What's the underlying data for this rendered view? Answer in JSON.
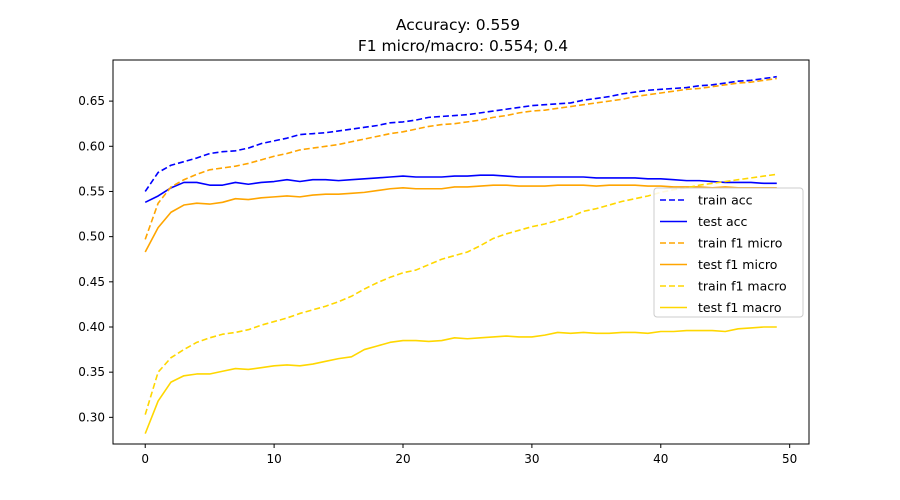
{
  "chart_data": {
    "type": "line",
    "title": "Accuracy: 0.559",
    "subtitle": "F1 micro/macro: 0.554; 0.4",
    "xlim": [
      -2.5,
      51.5
    ],
    "ylim": [
      0.2705,
      0.6955
    ],
    "x_ticks": [
      0,
      10,
      20,
      30,
      40,
      50
    ],
    "y_ticks": [
      0.3,
      0.35,
      0.4,
      0.45,
      0.5,
      0.55,
      0.6,
      0.65
    ],
    "y_tick_labels": [
      "0.30",
      "0.35",
      "0.40",
      "0.45",
      "0.50",
      "0.55",
      "0.60",
      "0.65"
    ],
    "legend_position": "center-right",
    "series": [
      {
        "name": "train acc",
        "color": "#0000ff",
        "dash": true,
        "values": [
          0.55,
          0.571,
          0.579,
          0.583,
          0.587,
          0.592,
          0.594,
          0.595,
          0.598,
          0.603,
          0.606,
          0.609,
          0.613,
          0.614,
          0.615,
          0.617,
          0.619,
          0.621,
          0.623,
          0.626,
          0.627,
          0.629,
          0.632,
          0.633,
          0.634,
          0.635,
          0.637,
          0.639,
          0.641,
          0.643,
          0.645,
          0.646,
          0.647,
          0.648,
          0.651,
          0.653,
          0.655,
          0.658,
          0.66,
          0.662,
          0.663,
          0.664,
          0.665,
          0.667,
          0.668,
          0.67,
          0.672,
          0.673,
          0.675,
          0.677
        ]
      },
      {
        "name": "test acc",
        "color": "#0000ff",
        "dash": false,
        "values": [
          0.538,
          0.545,
          0.554,
          0.56,
          0.56,
          0.557,
          0.557,
          0.56,
          0.558,
          0.56,
          0.561,
          0.563,
          0.561,
          0.563,
          0.563,
          0.562,
          0.563,
          0.564,
          0.565,
          0.566,
          0.567,
          0.566,
          0.566,
          0.566,
          0.567,
          0.567,
          0.568,
          0.568,
          0.567,
          0.566,
          0.566,
          0.566,
          0.566,
          0.566,
          0.566,
          0.565,
          0.565,
          0.565,
          0.565,
          0.564,
          0.564,
          0.563,
          0.562,
          0.562,
          0.561,
          0.56,
          0.56,
          0.56,
          0.559,
          0.559
        ]
      },
      {
        "name": "train f1 micro",
        "color": "#ffa500",
        "dash": true,
        "values": [
          0.497,
          0.537,
          0.555,
          0.563,
          0.569,
          0.574,
          0.576,
          0.578,
          0.581,
          0.585,
          0.589,
          0.592,
          0.596,
          0.598,
          0.6,
          0.602,
          0.605,
          0.608,
          0.611,
          0.614,
          0.616,
          0.619,
          0.622,
          0.624,
          0.625,
          0.627,
          0.629,
          0.632,
          0.634,
          0.637,
          0.639,
          0.64,
          0.642,
          0.644,
          0.646,
          0.648,
          0.65,
          0.652,
          0.655,
          0.657,
          0.659,
          0.661,
          0.663,
          0.664,
          0.666,
          0.668,
          0.67,
          0.671,
          0.673,
          0.675
        ]
      },
      {
        "name": "test f1 micro",
        "color": "#ffa500",
        "dash": false,
        "values": [
          0.483,
          0.51,
          0.527,
          0.535,
          0.537,
          0.536,
          0.538,
          0.542,
          0.541,
          0.543,
          0.544,
          0.545,
          0.544,
          0.546,
          0.547,
          0.547,
          0.548,
          0.549,
          0.551,
          0.553,
          0.554,
          0.553,
          0.553,
          0.553,
          0.555,
          0.555,
          0.556,
          0.557,
          0.557,
          0.556,
          0.556,
          0.556,
          0.557,
          0.557,
          0.557,
          0.556,
          0.557,
          0.557,
          0.557,
          0.556,
          0.556,
          0.555,
          0.555,
          0.555,
          0.554,
          0.555,
          0.554,
          0.554,
          0.554,
          0.554
        ]
      },
      {
        "name": "train f1 macro",
        "color": "#ffd700",
        "dash": true,
        "values": [
          0.303,
          0.35,
          0.366,
          0.375,
          0.383,
          0.388,
          0.392,
          0.394,
          0.397,
          0.402,
          0.406,
          0.41,
          0.415,
          0.419,
          0.423,
          0.428,
          0.434,
          0.442,
          0.449,
          0.455,
          0.46,
          0.463,
          0.469,
          0.475,
          0.479,
          0.483,
          0.49,
          0.498,
          0.503,
          0.507,
          0.511,
          0.514,
          0.518,
          0.522,
          0.528,
          0.531,
          0.535,
          0.539,
          0.542,
          0.545,
          0.549,
          0.552,
          0.554,
          0.557,
          0.559,
          0.561,
          0.563,
          0.565,
          0.567,
          0.569
        ]
      },
      {
        "name": "test f1 macro",
        "color": "#ffd700",
        "dash": false,
        "values": [
          0.282,
          0.318,
          0.339,
          0.346,
          0.348,
          0.348,
          0.351,
          0.354,
          0.353,
          0.355,
          0.357,
          0.358,
          0.357,
          0.359,
          0.362,
          0.365,
          0.367,
          0.375,
          0.379,
          0.383,
          0.385,
          0.385,
          0.384,
          0.385,
          0.388,
          0.387,
          0.388,
          0.389,
          0.39,
          0.389,
          0.389,
          0.391,
          0.394,
          0.393,
          0.394,
          0.393,
          0.393,
          0.394,
          0.394,
          0.393,
          0.395,
          0.395,
          0.396,
          0.396,
          0.396,
          0.395,
          0.398,
          0.399,
          0.4,
          0.4
        ]
      }
    ]
  }
}
